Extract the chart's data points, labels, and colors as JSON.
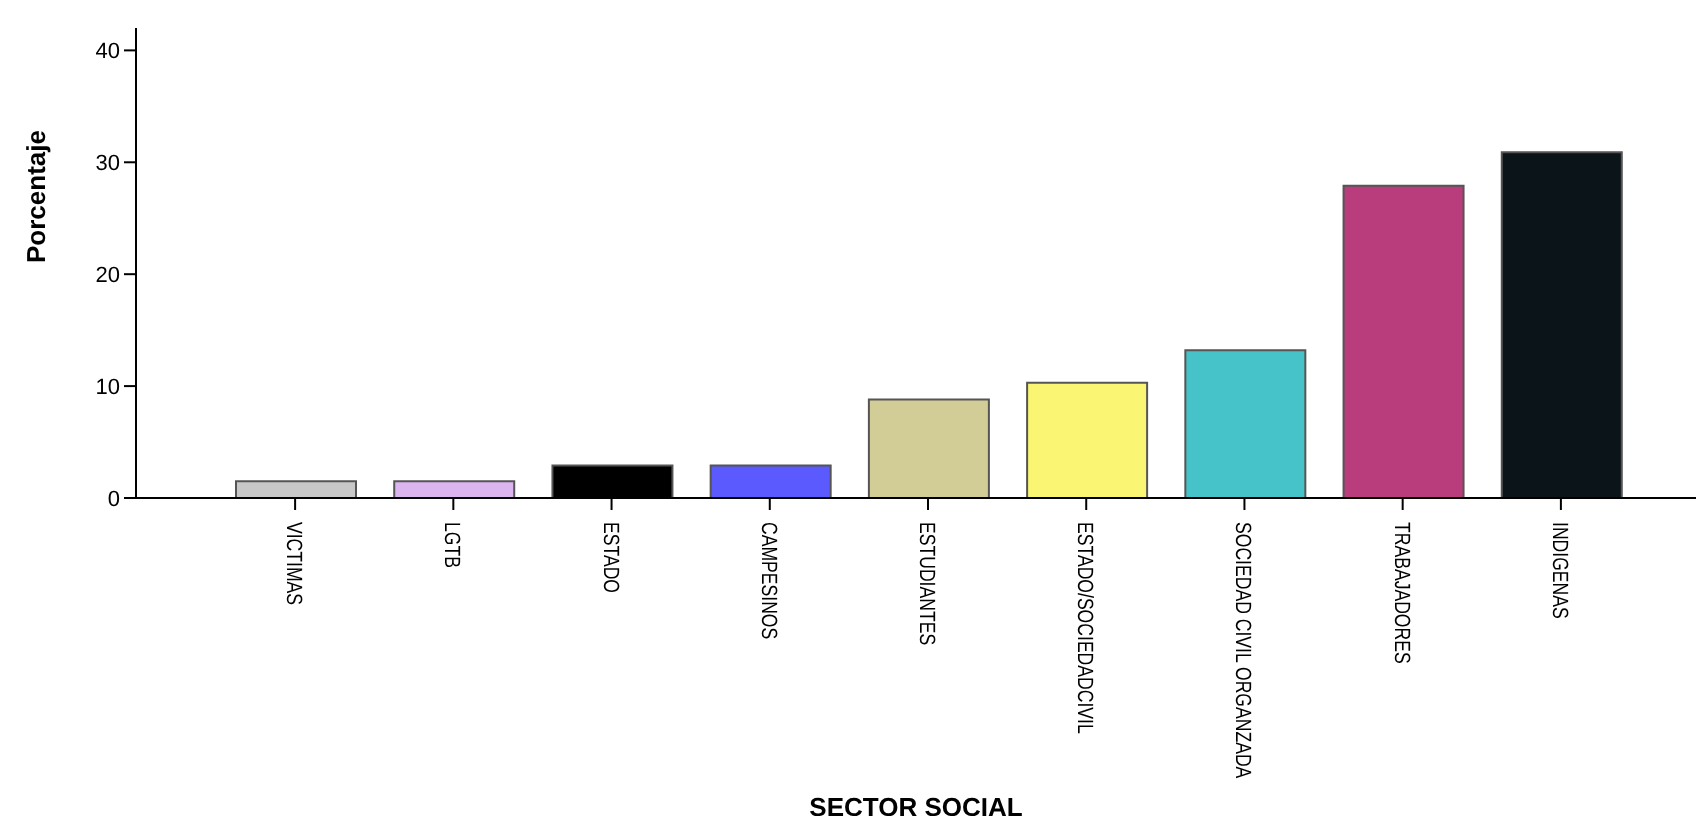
{
  "chart_data": {
    "type": "bar",
    "xlabel": "SECTOR SOCIAL",
    "ylabel": "Porcentaje",
    "categories": [
      "VICTIMAS",
      "LGTB",
      "ESTADO",
      "CAMPESINOS",
      "ESTUDIANTES",
      "ESTADO/SOCIEDADCIVIL",
      "SOCIEDAD CIVIL ORGANZADA",
      "TRABAJADORES",
      "INDIGENAS"
    ],
    "values": [
      1.5,
      1.5,
      2.9,
      2.9,
      8.8,
      10.3,
      13.2,
      27.9,
      30.9
    ],
    "colors": [
      "#c8c8c8",
      "#dcb4f0",
      "#000000",
      "#5a5aff",
      "#d2cd96",
      "#faf573",
      "#46c3c8",
      "#b93c7d",
      "#0a1419"
    ],
    "ylim": [
      0,
      42
    ],
    "yticks": [
      0,
      10,
      20,
      30,
      40
    ],
    "grid": false
  }
}
